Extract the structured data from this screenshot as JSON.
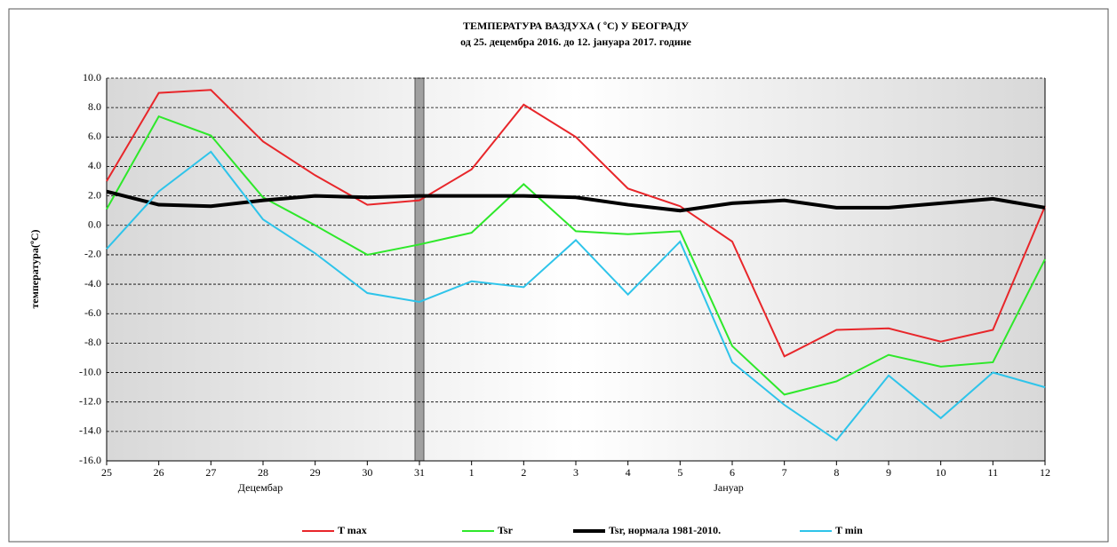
{
  "chart_data": {
    "type": "line",
    "title": "ТЕМПЕРАТУРА  ВАЗДУХА ( ºC) У БЕОГРАДУ",
    "subtitle": "од 25. децембра  2016.  до 12. јануара  2017. године",
    "y_label": "температура(ºC)",
    "annotations": [
      "Децембар",
      "Јануар"
    ],
    "categories": [
      "25",
      "26",
      "27",
      "28",
      "29",
      "30",
      "31",
      "1",
      "2",
      "3",
      "4",
      "5",
      "6",
      "7",
      "8",
      "9",
      "10",
      "11",
      "12"
    ],
    "series": [
      {
        "name": "T max",
        "color": "#e8262a",
        "values": [
          3.0,
          9.0,
          9.2,
          5.7,
          3.4,
          1.4,
          1.7,
          3.8,
          8.2,
          6.0,
          2.5,
          1.3,
          -1.1,
          -8.9,
          -7.1,
          -7.0,
          -7.9,
          -7.1,
          1.3
        ]
      },
      {
        "name": "Tsr",
        "color": "#2ee82a",
        "values": [
          1.1,
          7.4,
          6.1,
          1.9,
          0.0,
          -2.0,
          -1.3,
          -0.5,
          2.8,
          -0.4,
          -0.6,
          -0.4,
          -8.2,
          -11.5,
          -10.6,
          -8.8,
          -9.6,
          -9.3,
          -2.3
        ]
      },
      {
        "name": "Tsr, нормала  1981-2010.",
        "color": "#000000",
        "values": [
          2.3,
          1.4,
          1.3,
          1.7,
          2.0,
          1.9,
          2.0,
          2.0,
          2.0,
          1.9,
          1.4,
          1.0,
          1.5,
          1.7,
          1.2,
          1.2,
          1.5,
          1.8,
          1.2
        ]
      },
      {
        "name": "T min",
        "color": "#2ec4ea",
        "values": [
          -1.6,
          2.3,
          5.0,
          0.4,
          -1.9,
          -4.6,
          -5.2,
          -3.8,
          -4.2,
          -1.0,
          -4.7,
          -1.1,
          -9.3,
          -12.2,
          -14.6,
          -10.2,
          -13.1,
          -10.0,
          -11.0
        ]
      }
    ],
    "ylim": [
      -16,
      10
    ],
    "yticks": [
      {
        "value": -16,
        "label": "-16.0"
      },
      {
        "value": -14,
        "label": "-14.0"
      },
      {
        "value": -12,
        "label": "-12.0"
      },
      {
        "value": -10,
        "label": "-10.0"
      },
      {
        "value": -8,
        "label": "-8.0"
      },
      {
        "value": -6,
        "label": "-6.0"
      },
      {
        "value": -4,
        "label": "-4.0"
      },
      {
        "value": -2,
        "label": "-2.0"
      },
      {
        "value": 0,
        "label": "0.0"
      },
      {
        "value": 2,
        "label": "2.0"
      },
      {
        "value": 4,
        "label": "4.0"
      },
      {
        "value": 6,
        "label": "6.0"
      },
      {
        "value": 8,
        "label": "8.0"
      },
      {
        "value": 10,
        "label": "10.0"
      }
    ],
    "grid": true
  }
}
